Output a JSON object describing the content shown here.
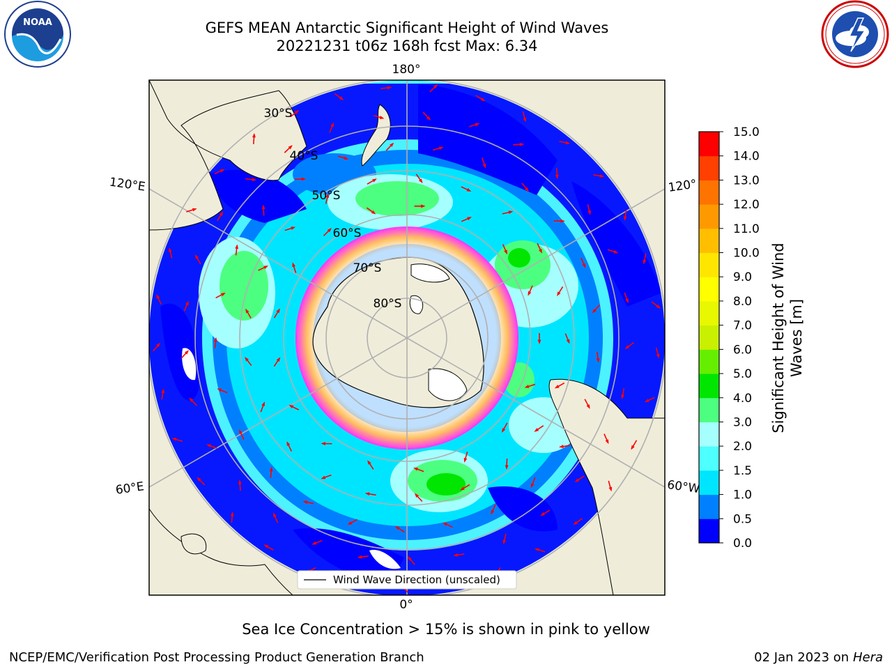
{
  "header": {
    "title_line1": "GEFS MEAN Antarctic Significant Height of Wind Waves",
    "title_line2": "20221231 t06z 168h fcst   Max: 6.34"
  },
  "map": {
    "projection": "south-polar-stereographic",
    "lon_labels": {
      "top": "180°",
      "bottom": "0°",
      "upper_left": "120°E",
      "upper_right": "120°",
      "lower_left": "60°E",
      "lower_right": "60°W"
    },
    "lat_labels": [
      "30°S",
      "40°S",
      "50°S",
      "60°S",
      "70°S",
      "80°S"
    ],
    "legend_label": "Wind Wave Direction (unscaled)",
    "vector_color": "#ff0000",
    "land_color": "#efedda"
  },
  "colorbar": {
    "label": "Significant Height of Wind Waves [m]",
    "label_line1": "Significant Height of Wind",
    "label_line2": "Waves [m]",
    "ticks": [
      "0.0",
      "0.5",
      "1.0",
      "1.5",
      "2.0",
      "3.0",
      "4.0",
      "5.0",
      "6.0",
      "7.0",
      "8.0",
      "9.0",
      "10.0",
      "11.0",
      "12.0",
      "13.0",
      "14.0",
      "15.0"
    ],
    "colors": [
      "#0000ff",
      "#0080ff",
      "#00e5ff",
      "#4dffff",
      "#a6ffff",
      "#4dff80",
      "#00e600",
      "#66ee00",
      "#c8f000",
      "#e8f800",
      "#ffff00",
      "#ffe600",
      "#ffbf00",
      "#ff9900",
      "#ff7300",
      "#ff4000",
      "#ff0000"
    ]
  },
  "caption": "Sea Ice Concentration > 15% is shown in pink to yellow",
  "footer": {
    "left": "NCEP/EMC/Verification Post Processing Product Generation Branch",
    "right_date": "02 Jan 2023 on",
    "right_host": "Hera"
  },
  "logos": {
    "left": "NOAA",
    "right": "NATIONAL WEATHER SERVICE"
  }
}
